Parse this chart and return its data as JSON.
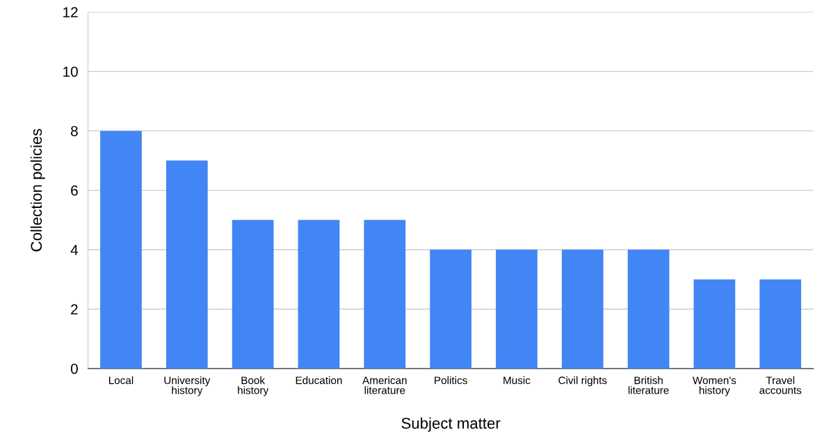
{
  "chart_data": {
    "type": "bar",
    "xlabel": "Subject matter",
    "ylabel": "Collection policies",
    "categories": [
      "Local",
      "University\nhistory",
      "Book\nhistory",
      "Education",
      "American\nliterature",
      "Politics",
      "Music",
      "Civil rights",
      "British\nliterature",
      "Women's\nhistory",
      "Travel\naccounts"
    ],
    "values": [
      8,
      7,
      5,
      5,
      5,
      4,
      4,
      4,
      4,
      3,
      3
    ],
    "color": "#4285f4",
    "ylim": [
      0,
      12
    ],
    "yticks": [
      0,
      2,
      4,
      6,
      8,
      10,
      12
    ],
    "grid": "y"
  }
}
